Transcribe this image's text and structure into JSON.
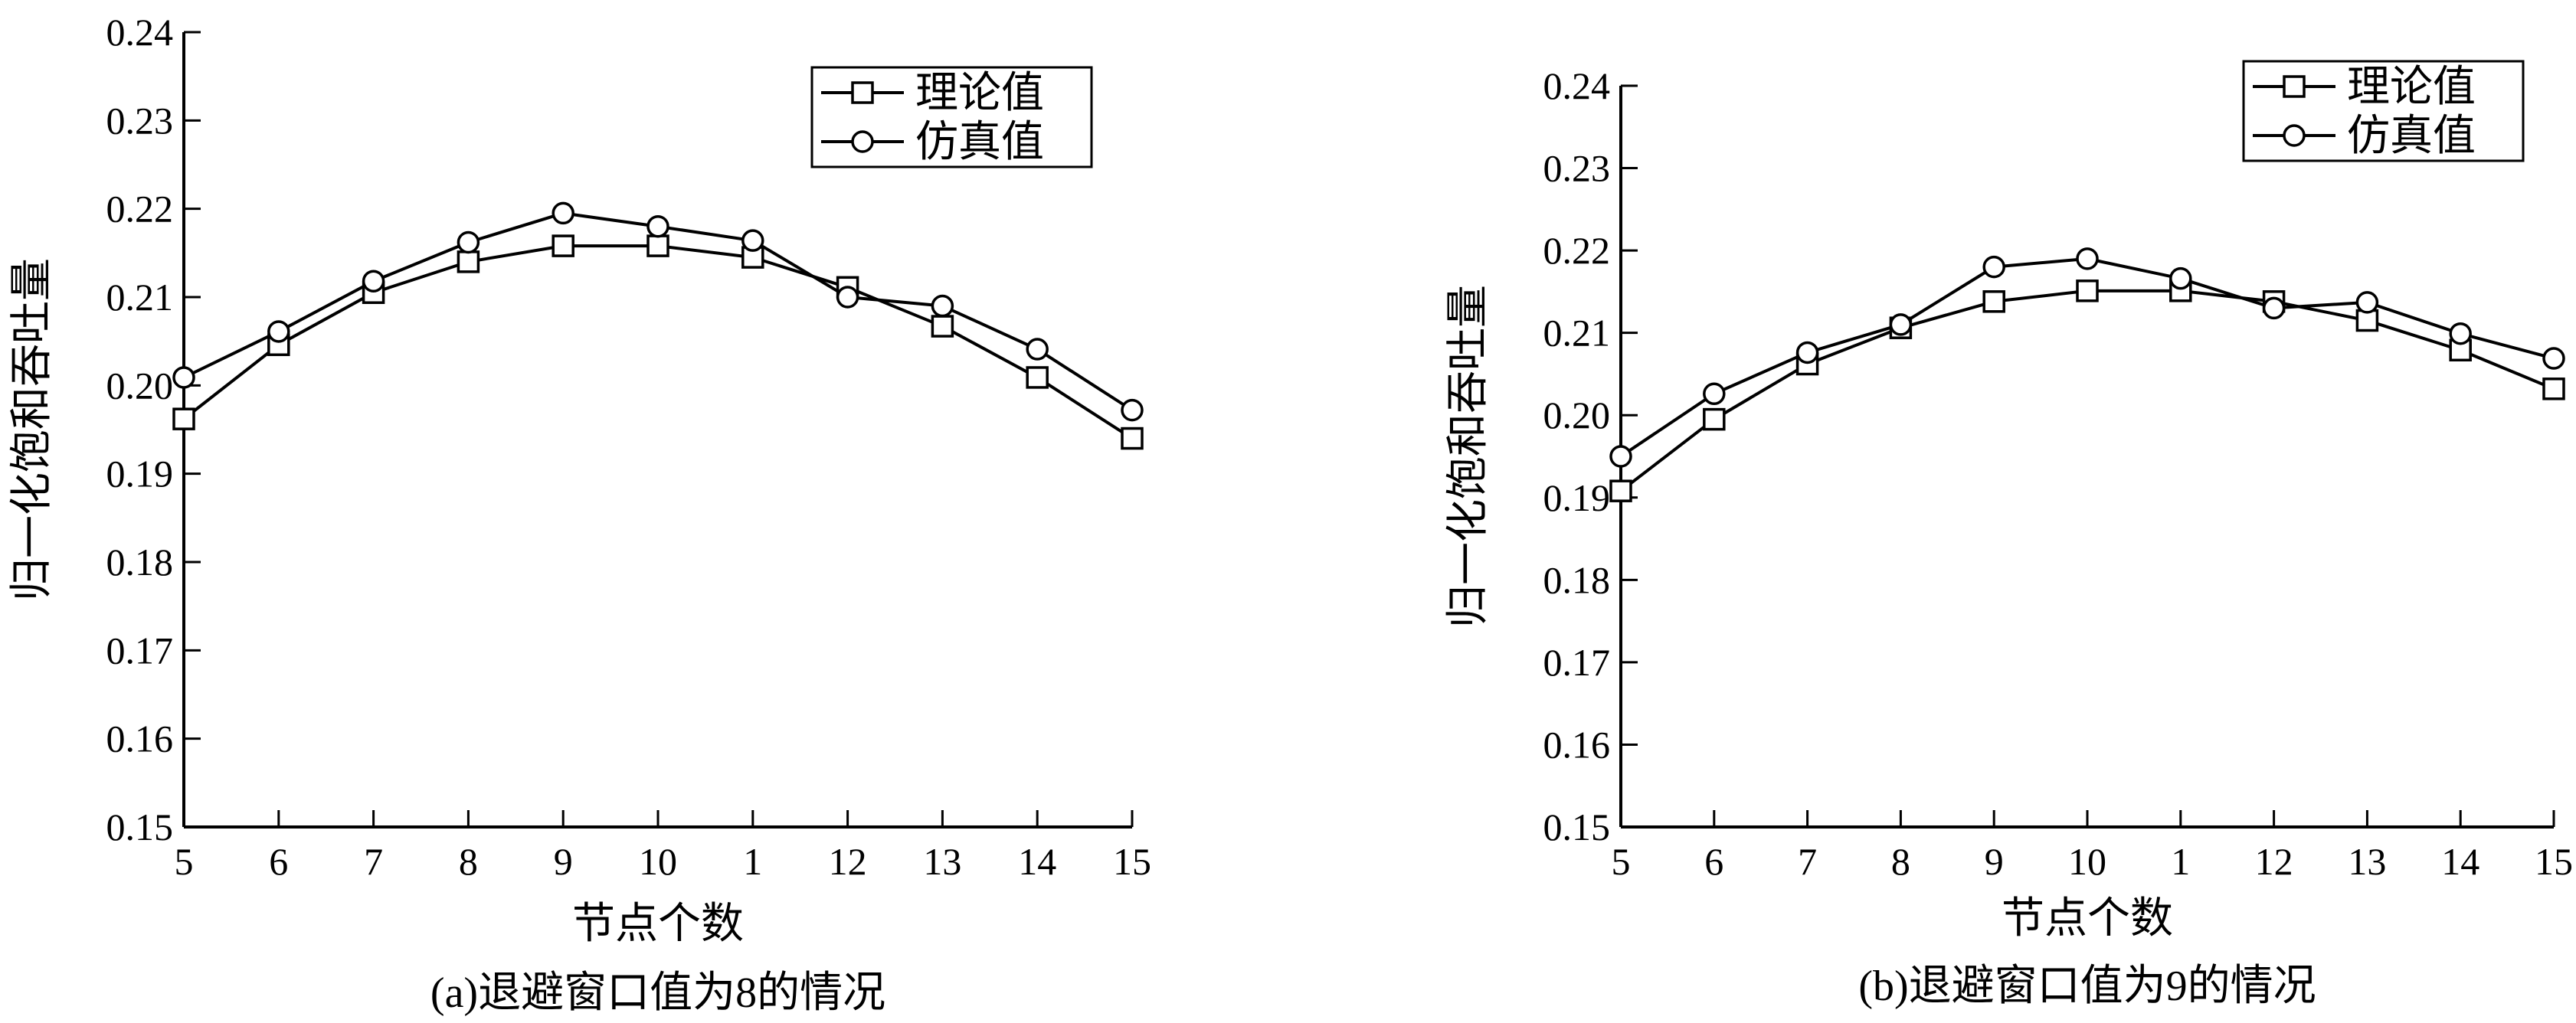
{
  "chart_data": [
    {
      "type": "line",
      "xlabel": "节点个数",
      "ylabel": "归一化饱和吞吐量",
      "caption": "(a)退避窗口值为8的情况",
      "categories": [
        "5",
        "6",
        "7",
        "8",
        "9",
        "10",
        "1",
        "12",
        "13",
        "14",
        "15"
      ],
      "ylim": [
        0.15,
        0.24
      ],
      "yticks": [
        "0.15",
        "0.16",
        "0.17",
        "0.18",
        "0.19",
        "0.20",
        "0.21",
        "0.22",
        "0.23",
        "0.24"
      ],
      "grid": false,
      "legend_position": "top-right",
      "series": [
        {
          "name": "理论值",
          "marker": "square",
          "values": [
            0.1962,
            0.2046,
            0.2105,
            0.214,
            0.2158,
            0.2158,
            0.2145,
            0.2111,
            0.2067,
            0.2009,
            0.194
          ]
        },
        {
          "name": "仿真值",
          "marker": "circle",
          "values": [
            0.2009,
            0.2061,
            0.2118,
            0.2162,
            0.2195,
            0.218,
            0.2164,
            0.21,
            0.209,
            0.2041,
            0.1972
          ]
        }
      ]
    },
    {
      "type": "line",
      "xlabel": "节点个数",
      "ylabel": "归一化饱和吞吐量",
      "caption": "(b)退避窗口值为9的情况",
      "categories": [
        "5",
        "6",
        "7",
        "8",
        "9",
        "10",
        "1",
        "12",
        "13",
        "14",
        "15"
      ],
      "ylim": [
        0.15,
        0.24
      ],
      "yticks": [
        "0.15",
        "0.16",
        "0.17",
        "0.18",
        "0.19",
        "0.20",
        "0.21",
        "0.22",
        "0.23",
        "0.24"
      ],
      "grid": false,
      "legend_position": "top-right",
      "series": [
        {
          "name": "理论值",
          "marker": "square",
          "values": [
            0.1908,
            0.1995,
            0.2062,
            0.2106,
            0.2138,
            0.2151,
            0.2151,
            0.2138,
            0.2115,
            0.2079,
            0.2032
          ]
        },
        {
          "name": "仿真值",
          "marker": "circle",
          "values": [
            0.195,
            0.2026,
            0.2076,
            0.211,
            0.218,
            0.219,
            0.2166,
            0.213,
            0.2137,
            0.2099,
            0.2069
          ]
        }
      ]
    }
  ]
}
